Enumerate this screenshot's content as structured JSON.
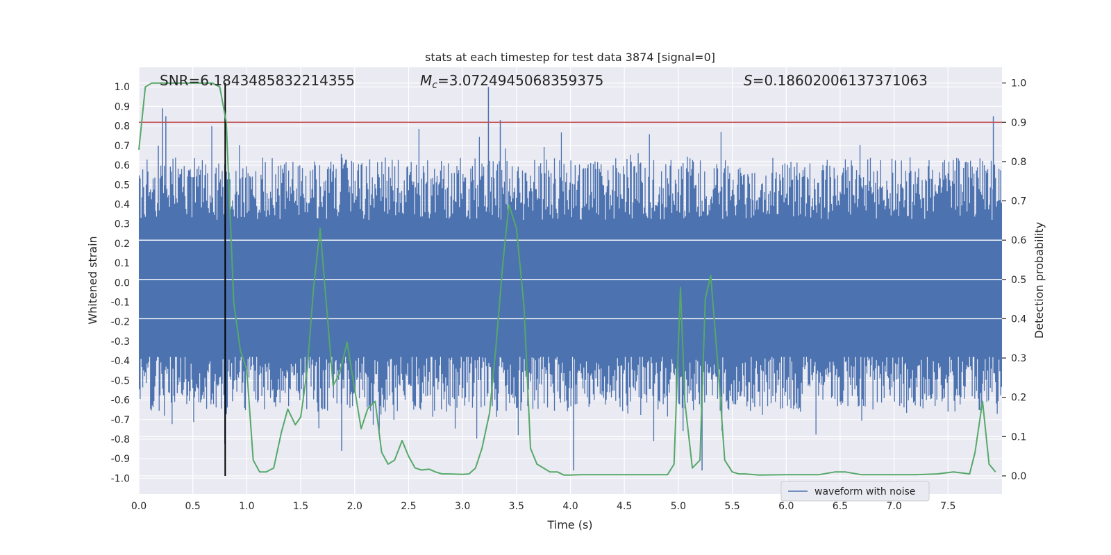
{
  "chart_data": {
    "type": "line",
    "title": "stats at each timestep for test data 3874 [signal=0]",
    "xlabel": "Time (s)",
    "ylabel": "Whitened strain",
    "y2label": "Detection probability",
    "xlim": [
      0.0,
      8.0
    ],
    "ylim": [
      -1.08,
      1.1
    ],
    "y2lim": [
      -0.046,
      1.04
    ],
    "x_ticks": [
      0.0,
      0.5,
      1.0,
      1.5,
      2.0,
      2.5,
      3.0,
      3.5,
      4.0,
      4.5,
      5.0,
      5.5,
      6.0,
      6.5,
      7.0,
      7.5
    ],
    "x_tick_labels": [
      "0.0",
      "0.5",
      "1.0",
      "1.5",
      "2.0",
      "2.5",
      "3.0",
      "3.5",
      "4.0",
      "4.5",
      "5.0",
      "5.5",
      "6.0",
      "6.5",
      "7.0",
      "7.5"
    ],
    "y_ticks": [
      -1.0,
      -0.9,
      -0.8,
      -0.7,
      -0.6,
      -0.5,
      -0.4,
      -0.3,
      -0.2,
      -0.1,
      0.0,
      0.1,
      0.2,
      0.3,
      0.4,
      0.5,
      0.6,
      0.7,
      0.8,
      0.9,
      1.0
    ],
    "y_tick_labels": [
      "-1.0",
      "-0.9",
      "-0.8",
      "-0.7",
      "-0.6",
      "-0.5",
      "-0.4",
      "-0.3",
      "-0.2",
      "-0.1",
      "0.0",
      "0.1",
      "0.2",
      "0.3",
      "0.4",
      "0.5",
      "0.6",
      "0.7",
      "0.8",
      "0.9",
      "1.0"
    ],
    "y2_ticks": [
      0.0,
      0.1,
      0.2,
      0.3,
      0.4,
      0.5,
      0.6,
      0.7,
      0.8,
      0.9,
      1.0
    ],
    "y2_tick_labels": [
      "0.0",
      "0.1",
      "0.2",
      "0.3",
      "0.4",
      "0.5",
      "0.6",
      "0.7",
      "0.8",
      "0.9",
      "1.0"
    ],
    "annotations": {
      "snr": "SNR=6.1843485832214355",
      "mc_symbol": "M",
      "mc_sub": "c",
      "mc_value": "=3.0724945068359375",
      "s_symbol": "S",
      "s_value": "=0.18602006137371063"
    },
    "threshold": {
      "value": 0.9,
      "axis": "y2",
      "color": "#c44e52"
    },
    "marker_time": 0.8,
    "legend": {
      "location": "lower-right",
      "entries": [
        "waveform with noise"
      ]
    },
    "series": [
      {
        "name": "waveform with noise",
        "axis": "y",
        "color": "#4c72b0",
        "style": "dense noise, envelope approx. -0.96 to 1.0",
        "peaks_x": [
          0.22,
          0.25,
          0.18,
          3.24,
          3.35,
          7.92,
          4.03,
          5.22,
          1.88
        ],
        "peaks_y": [
          0.89,
          0.85,
          0.7,
          1.0,
          0.83,
          0.85,
          -0.96,
          -0.96,
          -0.86
        ]
      },
      {
        "name": "Detection probability",
        "axis": "y2",
        "color": "#55a868",
        "x": [
          0.0,
          0.06,
          0.12,
          0.2,
          0.3,
          0.4,
          0.5,
          0.6,
          0.68,
          0.75,
          0.81,
          0.88,
          0.94,
          1.0,
          1.06,
          1.12,
          1.18,
          1.25,
          1.32,
          1.38,
          1.45,
          1.5,
          1.56,
          1.62,
          1.68,
          1.74,
          1.8,
          1.86,
          1.93,
          2.0,
          2.06,
          2.12,
          2.19,
          2.25,
          2.31,
          2.37,
          2.44,
          2.5,
          2.56,
          2.62,
          2.69,
          2.75,
          2.81,
          2.87,
          3.0,
          3.06,
          3.12,
          3.18,
          3.25,
          3.31,
          3.37,
          3.43,
          3.5,
          3.57,
          3.63,
          3.69,
          3.75,
          3.81,
          3.88,
          3.94,
          4.0,
          4.1,
          4.5,
          4.9,
          4.96,
          5.02,
          5.06,
          5.13,
          5.2,
          5.25,
          5.3,
          5.37,
          5.43,
          5.5,
          5.56,
          5.62,
          5.75,
          6.0,
          6.2,
          6.3,
          6.45,
          6.55,
          6.7,
          7.0,
          7.2,
          7.4,
          7.55,
          7.7,
          7.75,
          7.82,
          7.88,
          7.94
        ],
        "y": [
          0.83,
          0.99,
          1.0,
          1.0,
          1.0,
          1.0,
          1.0,
          1.0,
          1.0,
          0.99,
          0.9,
          0.44,
          0.32,
          0.27,
          0.04,
          0.01,
          0.01,
          0.02,
          0.11,
          0.17,
          0.13,
          0.15,
          0.27,
          0.48,
          0.63,
          0.43,
          0.23,
          0.26,
          0.34,
          0.22,
          0.12,
          0.17,
          0.19,
          0.06,
          0.03,
          0.04,
          0.09,
          0.05,
          0.02,
          0.015,
          0.017,
          0.01,
          0.005,
          0.005,
          0.004,
          0.005,
          0.02,
          0.07,
          0.16,
          0.33,
          0.53,
          0.69,
          0.63,
          0.43,
          0.07,
          0.03,
          0.02,
          0.01,
          0.01,
          0.002,
          0.002,
          0.003,
          0.003,
          0.003,
          0.03,
          0.48,
          0.19,
          0.02,
          0.04,
          0.45,
          0.51,
          0.27,
          0.04,
          0.01,
          0.005,
          0.005,
          0.002,
          0.003,
          0.003,
          0.003,
          0.01,
          0.01,
          0.003,
          0.003,
          0.003,
          0.005,
          0.01,
          0.005,
          0.06,
          0.19,
          0.03,
          0.01
        ]
      }
    ]
  }
}
